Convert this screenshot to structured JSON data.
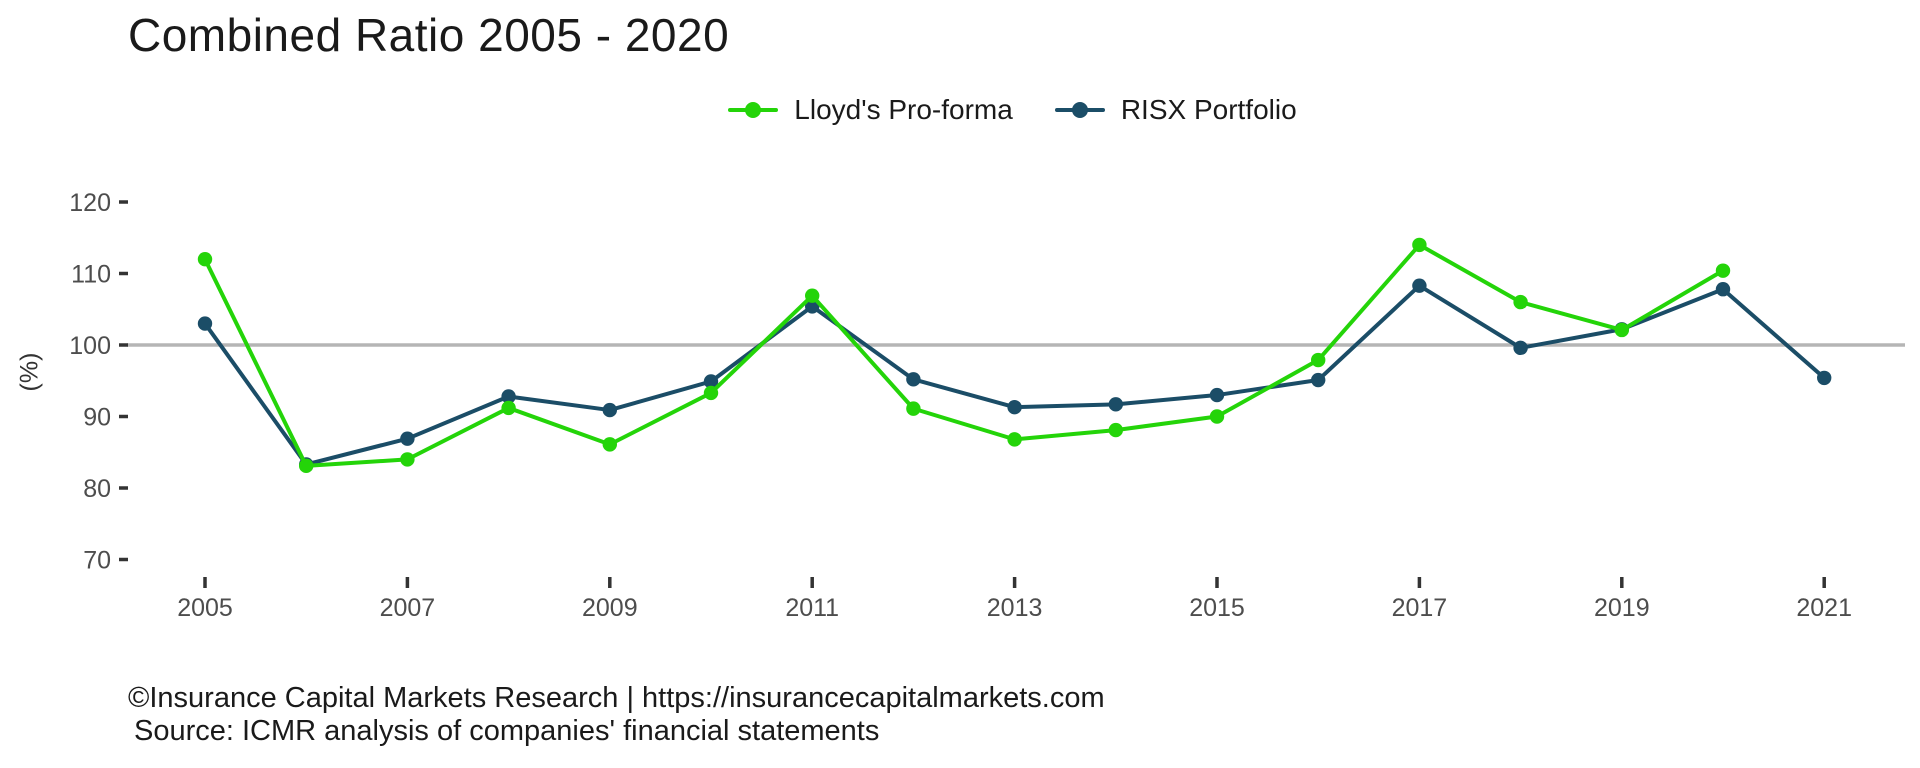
{
  "title": "Combined Ratio 2005 - 2020",
  "footer": {
    "line1": "©Insurance Capital Markets Research | https://insurancecapitalmarkets.com",
    "line2": "Source: ICMR analysis of companies' financial statements"
  },
  "chart_data": {
    "type": "line",
    "title": "Combined Ratio 2005 - 2020",
    "xlabel": "",
    "ylabel": "(%)",
    "x": [
      2005,
      2006,
      2007,
      2008,
      2009,
      2010,
      2011,
      2012,
      2013,
      2014,
      2015,
      2016,
      2017,
      2018,
      2019,
      2020,
      2021
    ],
    "xticks": [
      2005,
      2007,
      2009,
      2011,
      2013,
      2015,
      2017,
      2019,
      2021
    ],
    "yticks": [
      120,
      110,
      100,
      90,
      80,
      70
    ],
    "ylim": [
      70,
      122
    ],
    "grid": false,
    "legend_position": "top-center",
    "reference_line": {
      "value": 100,
      "color": "#b5b5b5"
    },
    "series": [
      {
        "name": "Lloyd's Pro-forma",
        "color": "#24d409",
        "values": [
          112.0,
          83.1,
          84.0,
          91.2,
          86.1,
          93.3,
          106.9,
          91.1,
          86.8,
          88.1,
          90.0,
          97.9,
          114.0,
          106.0,
          102.1,
          110.4,
          null
        ]
      },
      {
        "name": "RISX Portfolio",
        "color": "#1b4d67",
        "values": [
          103.0,
          83.3,
          86.9,
          92.8,
          90.9,
          94.9,
          105.4,
          95.2,
          91.3,
          91.7,
          93.0,
          95.1,
          108.3,
          99.6,
          102.2,
          107.8,
          95.4
        ]
      }
    ]
  }
}
